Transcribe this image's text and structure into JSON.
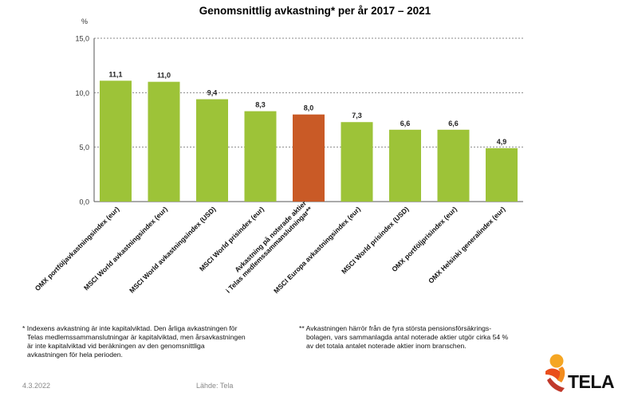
{
  "chart_data": {
    "type": "bar",
    "title": "Genomsnittlig avkastning* per år 2017 – 2021",
    "ylabel": "%",
    "xlabel": "",
    "ylim": [
      0,
      15
    ],
    "yticks": [
      "0,0",
      "5,0",
      "10,0",
      "15,0"
    ],
    "grid": true,
    "categories": [
      [
        "OMX portföljavkastningsindex (eur)"
      ],
      [
        "MSCI World avkastningsindex (eur)"
      ],
      [
        "MSCI World avkastningsindex (USD)"
      ],
      [
        "MSCI World prisindex (eur)"
      ],
      [
        "Avkastning på noterade aktier",
        "i Telas medlemssammanslutningar**"
      ],
      [
        "MSCI Europa avkastningsindex (eur)"
      ],
      [
        "MSCI World prisindex (USD)"
      ],
      [
        "OMX portföljprisindex (eur)"
      ],
      [
        "OMX  Helsinki generalindex (eur)"
      ]
    ],
    "values": [
      11.1,
      11.0,
      9.4,
      8.3,
      8.0,
      7.3,
      6.6,
      6.6,
      4.9
    ],
    "value_labels": [
      "11,1",
      "11,0",
      "9,4",
      "8,3",
      "8,0",
      "7,3",
      "6,6",
      "6,6",
      "4,9"
    ],
    "highlight_index": 4,
    "colors": {
      "bar": "#9dc338",
      "highlight": "#c95a26",
      "grid": "#8a8a8a",
      "axis": "#555555"
    }
  },
  "footnotes": {
    "note1": {
      "mark": "*",
      "lines": [
        "Indexens avkastning är inte kapitalviktad. Den årliga avkastningen för",
        "Telas medlemssammanslutningar är kapitalviktad, men årsavkastningen",
        "är inte kapitalviktad vid beräkningen av den genomsnittliga",
        "avkastningen för hela perioden."
      ]
    },
    "note2": {
      "mark": "**",
      "lines": [
        "Avkastningen härrör från de fyra största pensionsförsäkrings-",
        "bolagen, vars sammanlagda antal noterade aktier utgör cirka 54 %",
        "av det totala antalet noterade aktier inom branschen."
      ]
    }
  },
  "footer": {
    "date": "4.3.2022",
    "source": "Lähde: Tela"
  },
  "logo": {
    "text": "TELA",
    "colors": [
      "#f5a623",
      "#e94e1b",
      "#c0392b"
    ]
  }
}
